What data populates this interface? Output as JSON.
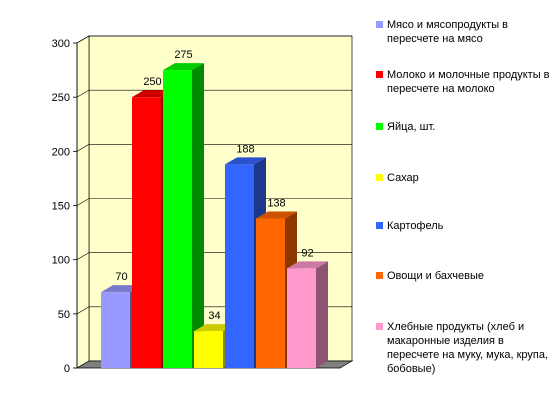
{
  "chart_data": {
    "type": "bar",
    "style": "3d-clustered",
    "title": "",
    "xlabel": "",
    "ylabel": "",
    "ylim": [
      0,
      300
    ],
    "yticks": [
      0,
      50,
      100,
      150,
      200,
      250,
      300
    ],
    "grid": true,
    "legend_position": "right",
    "plot_background": "#ffffcc",
    "series": [
      {
        "name": "Мясо и мясопродукты в пересчете на мясо",
        "value": 70,
        "color": "#9999ff"
      },
      {
        "name": "Молоко и молочные продукты в пересчете на молоко",
        "value": 250,
        "color": "#ff0000"
      },
      {
        "name": "Яйца, шт.",
        "value": 275,
        "color": "#00ff00"
      },
      {
        "name": "Сахар",
        "value": 34,
        "color": "#ffff00"
      },
      {
        "name": "Картофель",
        "value": 188,
        "color": "#3366ff"
      },
      {
        "name": "Овощи и бахчевые",
        "value": 138,
        "color": "#ff6600"
      },
      {
        "name": "Хлебные продукты (хлеб и макаронные изделия в пересчете на муку, мука, крупа, бобовые)",
        "value": 92,
        "color": "#ff99cc"
      }
    ]
  }
}
